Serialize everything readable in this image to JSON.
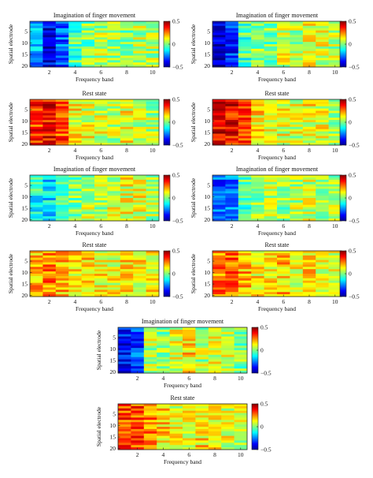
{
  "figure": {
    "colormap": "jet",
    "rows": 20,
    "cols": 10,
    "colorbar": {
      "ticks": [
        "0.5",
        "0",
        "−0.5"
      ],
      "min": -0.5,
      "max": 0.5
    }
  },
  "chart_data": [
    {
      "type": "heatmap",
      "title": "Imagination of finger movement",
      "xlabel": "Frequency band",
      "ylabel": "Spatial electrode",
      "xticks": [
        "2",
        "4",
        "6",
        "8",
        "10"
      ],
      "yticks": [
        "5",
        "10",
        "15",
        "20"
      ],
      "zlim": [
        -0.5,
        0.5
      ],
      "col_means": [
        -0.22,
        -0.38,
        -0.28,
        -0.05,
        0.0,
        0.05,
        0.02,
        0.0,
        0.05,
        0.05
      ],
      "variation": 0.12
    },
    {
      "type": "heatmap",
      "title": "Imagination of finger movement",
      "xlabel": "Frequency band",
      "ylabel": "Spatial electrode",
      "xticks": [
        "2",
        "4",
        "6",
        "8",
        "10"
      ],
      "yticks": [
        "5",
        "10",
        "15",
        "20"
      ],
      "zlim": [
        -0.5,
        0.5
      ],
      "col_means": [
        -0.4,
        -0.33,
        -0.05,
        0.02,
        0.0,
        0.08,
        0.05,
        0.12,
        0.08,
        0.05
      ],
      "variation": 0.12
    },
    {
      "type": "heatmap",
      "title": "Rest state",
      "xlabel": "Frequency band",
      "ylabel": "Spatial electrode",
      "xticks": [
        "2",
        "4",
        "6",
        "8",
        "10"
      ],
      "yticks": [
        "5",
        "10",
        "15",
        "20"
      ],
      "zlim": [
        -0.5,
        0.5
      ],
      "col_means": [
        0.33,
        0.38,
        0.3,
        0.12,
        0.1,
        0.08,
        0.05,
        0.12,
        0.08,
        0.05
      ],
      "variation": 0.12
    },
    {
      "type": "heatmap",
      "title": "Rest state",
      "xlabel": "Frequency band",
      "ylabel": "Spatial electrode",
      "xticks": [
        "2",
        "4",
        "6",
        "8",
        "10"
      ],
      "yticks": [
        "5",
        "10",
        "15",
        "20"
      ],
      "zlim": [
        -0.5,
        0.5
      ],
      "col_means": [
        0.4,
        0.38,
        0.3,
        0.15,
        0.12,
        0.1,
        0.08,
        0.12,
        0.1,
        0.05
      ],
      "variation": 0.12
    },
    {
      "type": "heatmap",
      "title": "Imagination of finger movement",
      "xlabel": "Frequency band",
      "ylabel": "Spatial electrode",
      "xticks": [
        "2",
        "4",
        "6",
        "8",
        "10"
      ],
      "yticks": [
        "5",
        "10",
        "15",
        "20"
      ],
      "zlim": [
        -0.5,
        0.5
      ],
      "col_means": [
        -0.1,
        -0.15,
        -0.05,
        0.0,
        0.05,
        0.05,
        0.08,
        0.1,
        0.1,
        0.05
      ],
      "variation": 0.12
    },
    {
      "type": "heatmap",
      "title": "Imagination of finger movement",
      "xlabel": "Frequency band",
      "ylabel": "Spatial electrode",
      "xticks": [
        "2",
        "4",
        "6",
        "8",
        "10"
      ],
      "yticks": [
        "5",
        "10",
        "15",
        "20"
      ],
      "zlim": [
        -0.5,
        0.5
      ],
      "col_means": [
        -0.3,
        -0.25,
        -0.05,
        0.02,
        0.05,
        0.02,
        0.05,
        0.08,
        0.05,
        0.05
      ],
      "variation": 0.12
    },
    {
      "type": "heatmap",
      "title": "Rest state",
      "xlabel": "Frequency band",
      "ylabel": "Spatial electrode",
      "xticks": [
        "2",
        "4",
        "6",
        "8",
        "10"
      ],
      "yticks": [
        "5",
        "10",
        "15",
        "20"
      ],
      "zlim": [
        -0.5,
        0.5
      ],
      "col_means": [
        0.2,
        0.25,
        0.18,
        0.15,
        0.15,
        0.12,
        0.12,
        0.15,
        0.12,
        0.12
      ],
      "variation": 0.12
    },
    {
      "type": "heatmap",
      "title": "Rest state",
      "xlabel": "Frequency band",
      "ylabel": "Spatial electrode",
      "xticks": [
        "2",
        "4",
        "6",
        "8",
        "10"
      ],
      "yticks": [
        "5",
        "10",
        "15",
        "20"
      ],
      "zlim": [
        -0.5,
        0.5
      ],
      "col_means": [
        0.25,
        0.28,
        0.2,
        0.15,
        0.15,
        0.18,
        0.12,
        0.15,
        0.12,
        0.1
      ],
      "variation": 0.12
    },
    {
      "type": "heatmap",
      "title": "Imagination of finger movement",
      "xlabel": "Frequency band",
      "ylabel": "Spatial electrode",
      "xticks": [
        "2",
        "4",
        "6",
        "8",
        "10"
      ],
      "yticks": [
        "5",
        "10",
        "15",
        "20"
      ],
      "zlim": [
        -0.5,
        0.5
      ],
      "col_means": [
        -0.35,
        -0.3,
        0.05,
        0.0,
        0.1,
        0.15,
        0.05,
        0.1,
        0.08,
        0.0
      ],
      "variation": 0.12
    },
    {
      "type": "heatmap",
      "title": "Rest state",
      "xlabel": "Frequency band",
      "ylabel": "Spatial electrode",
      "xticks": [
        "2",
        "4",
        "6",
        "8",
        "10"
      ],
      "yticks": [
        "5",
        "10",
        "15",
        "20"
      ],
      "zlim": [
        -0.5,
        0.5
      ],
      "col_means": [
        0.3,
        0.32,
        0.25,
        0.15,
        0.1,
        0.12,
        0.15,
        0.12,
        0.1,
        0.08
      ],
      "variation": 0.12
    }
  ]
}
